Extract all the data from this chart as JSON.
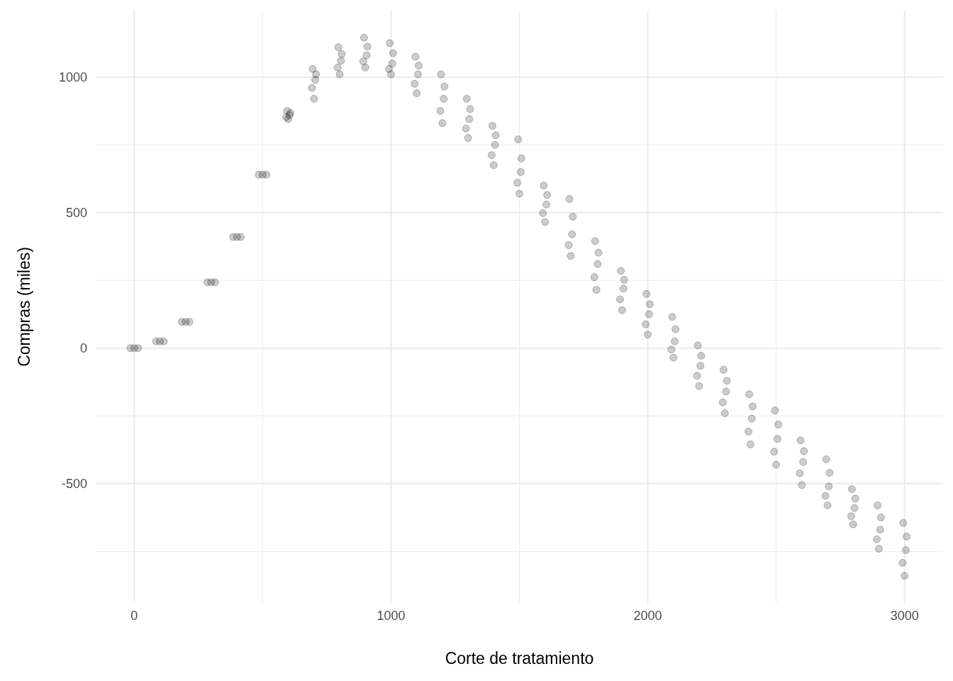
{
  "chart_data": {
    "type": "scatter",
    "xlabel": "Corte de tratamiento",
    "ylabel": "Compras (miles)",
    "xlim": [
      -150,
      3150
    ],
    "ylim": [
      -940,
      1245
    ],
    "xticks": [
      0,
      {
        "value": 500,
        "label": null
      },
      1000,
      {
        "value": 1500,
        "label": null
      },
      2000,
      {
        "value": 2500,
        "label": null
      },
      3000
    ],
    "yticks": [
      {
        "value": -750,
        "label": null
      },
      -500,
      {
        "value": -250,
        "label": null
      },
      0,
      {
        "value": 250,
        "label": null
      },
      500,
      {
        "value": 750,
        "label": null
      },
      1000
    ],
    "grid": true,
    "marker": "circle",
    "series": [
      {
        "color": "#000000",
        "x": [
          -15,
          0,
          15,
          85,
          100,
          115,
          185,
          200,
          215,
          285,
          300,
          315,
          385,
          400,
          415,
          485,
          500,
          515,
          600,
          595,
          605,
          592,
          608,
          700,
          695,
          705,
          692,
          708,
          800,
          795,
          805,
          792,
          808,
          900,
          895,
          905,
          892,
          908,
          1000,
          995,
          1005,
          992,
          1008,
          1100,
          1095,
          1105,
          1092,
          1108,
          1200,
          1195,
          1205,
          1192,
          1208,
          1300,
          1295,
          1305,
          1292,
          1308,
          1400,
          1395,
          1405,
          1392,
          1408,
          1500,
          1495,
          1505,
          1492,
          1508,
          1600,
          1595,
          1605,
          1592,
          1608,
          1700,
          1695,
          1705,
          1692,
          1708,
          1800,
          1795,
          1805,
          1792,
          1808,
          1900,
          1895,
          1905,
          1892,
          1908,
          2000,
          1995,
          2005,
          1992,
          2008,
          2100,
          2095,
          2105,
          2092,
          2108,
          2200,
          2195,
          2205,
          2192,
          2208,
          2300,
          2295,
          2305,
          2292,
          2308,
          2400,
          2395,
          2405,
          2392,
          2408,
          2500,
          2495,
          2505,
          2492,
          2508,
          2600,
          2595,
          2605,
          2592,
          2608,
          2700,
          2695,
          2705,
          2692,
          2708,
          2800,
          2795,
          2805,
          2792,
          2808,
          2900,
          2895,
          2905,
          2892,
          2908,
          3000,
          2995,
          3005,
          2992,
          3008
        ],
        "values": [
          0,
          0,
          0,
          25,
          25,
          25,
          97,
          97,
          97,
          243,
          243,
          243,
          410,
          410,
          410,
          640,
          640,
          640,
          845,
          875,
          860,
          852,
          868,
          920,
          1030,
          990,
          960,
          1010,
          1010,
          1110,
          1060,
          1035,
          1085,
          1035,
          1145,
          1080,
          1058,
          1112,
          1010,
          1125,
          1050,
          1030,
          1088,
          940,
          1075,
          1010,
          975,
          1042,
          830,
          1010,
          920,
          875,
          965,
          775,
          920,
          845,
          810,
          882,
          675,
          820,
          750,
          712,
          785,
          570,
          770,
          650,
          610,
          700,
          465,
          600,
          530,
          498,
          565,
          340,
          550,
          420,
          380,
          485,
          215,
          395,
          310,
          262,
          352,
          140,
          285,
          220,
          180,
          252,
          50,
          200,
          125,
          88,
          162,
          -35,
          115,
          25,
          -5,
          70,
          -140,
          10,
          -65,
          -102,
          -28,
          -240,
          -80,
          -160,
          -200,
          -120,
          -355,
          -170,
          -260,
          -308,
          -215,
          -430,
          -230,
          -335,
          -382,
          -282,
          -505,
          -340,
          -420,
          -462,
          -380,
          -580,
          -410,
          -510,
          -545,
          -460,
          -650,
          -520,
          -590,
          -620,
          -555,
          -740,
          -580,
          -670,
          -705,
          -625,
          -840,
          -645,
          -745,
          -792,
          -695
        ]
      }
    ]
  }
}
